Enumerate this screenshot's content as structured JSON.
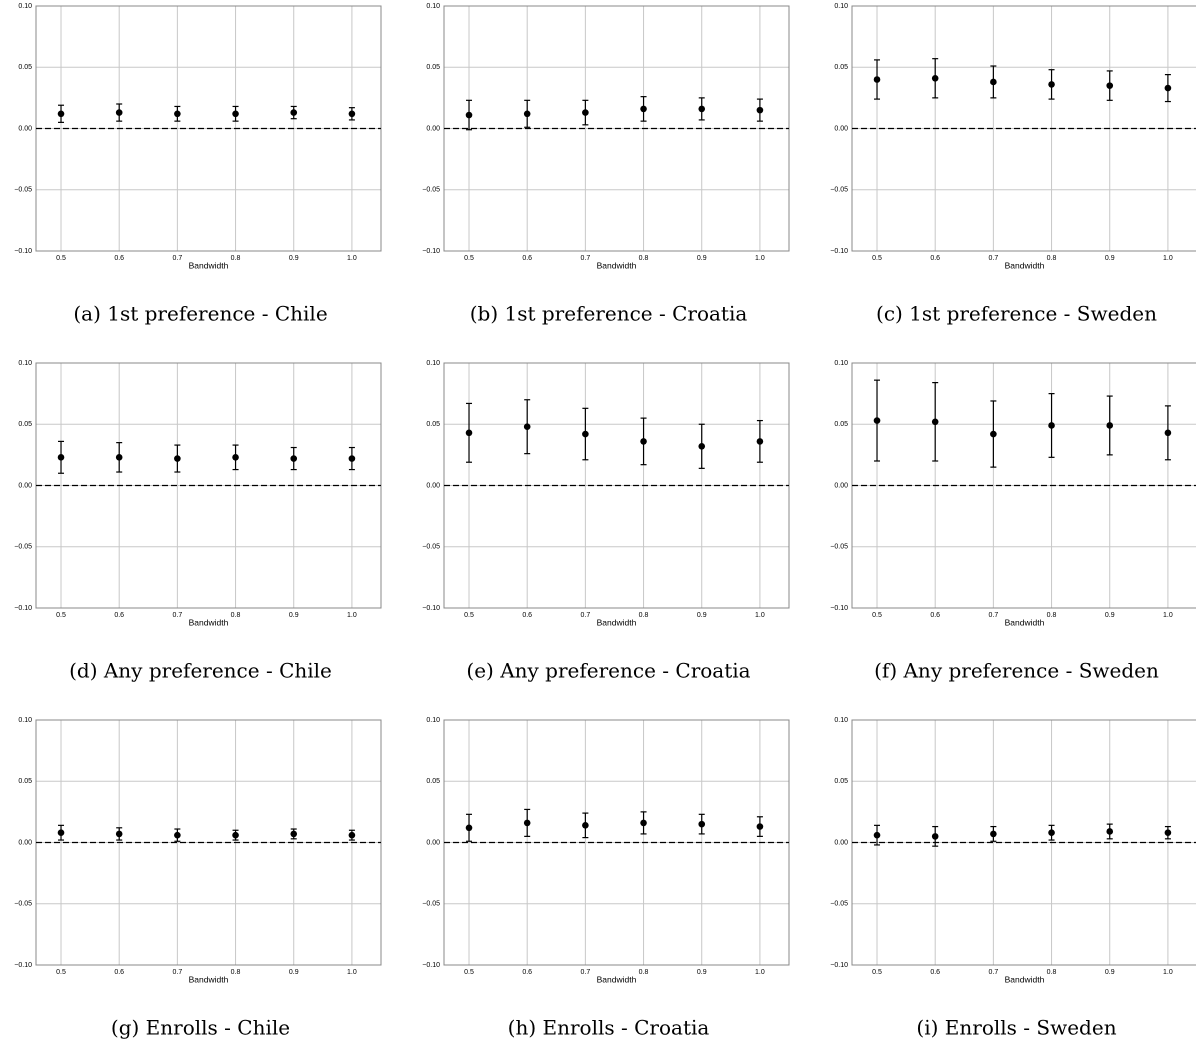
{
  "chart_data": [
    {
      "type": "errorbar",
      "caption": "(a) 1st preference - Chile",
      "x_label": "Bandwidth",
      "x": [
        0.5,
        0.6,
        0.7,
        0.8,
        0.9,
        1
      ],
      "values": [
        0.012,
        0.013,
        0.012,
        0.012,
        0.013,
        0.012
      ],
      "errors": [
        0.007,
        0.007,
        0.006,
        0.006,
        0.005,
        0.005
      ],
      "color": "#000000",
      "xlim": [
        0.457,
        1.05
      ],
      "ylim": [
        -0.1,
        0.1
      ],
      "xticks": [
        0.5,
        0.6,
        0.7,
        0.8,
        0.9,
        {
          "value": 1,
          "label": "1.0"
        }
      ],
      "yticks": [
        {
          "value": -0.1,
          "label": "−0.10"
        },
        {
          "value": -0.05,
          "label": "−0.05"
        },
        {
          "value": 0,
          "label": "0.00"
        },
        {
          "value": 0.05,
          "label": "0.05"
        },
        {
          "value": 0.1,
          "label": "0.10"
        }
      ],
      "grid": true,
      "reference_line": 0
    },
    {
      "type": "errorbar",
      "caption": "(b) 1st preference - Croatia",
      "x_label": "Bandwidth",
      "x": [
        0.5,
        0.6,
        0.7,
        0.8,
        0.9,
        1
      ],
      "values": [
        0.011,
        0.012,
        0.013,
        0.016,
        0.016,
        0.015
      ],
      "errors": [
        0.012,
        0.011,
        0.01,
        0.01,
        0.009,
        0.009
      ],
      "color": "#000000",
      "xlim": [
        0.457,
        1.05
      ],
      "ylim": [
        -0.1,
        0.1
      ],
      "xticks": [
        0.5,
        0.6,
        0.7,
        0.8,
        0.9,
        {
          "value": 1,
          "label": "1.0"
        }
      ],
      "yticks": [
        {
          "value": -0.1,
          "label": "−0.10"
        },
        {
          "value": -0.05,
          "label": "−0.05"
        },
        {
          "value": 0,
          "label": "0.00"
        },
        {
          "value": 0.05,
          "label": "0.05"
        },
        {
          "value": 0.1,
          "label": "0.10"
        }
      ],
      "grid": true,
      "reference_line": 0
    },
    {
      "type": "errorbar",
      "caption": "(c) 1st preference - Sweden",
      "x_label": "Bandwidth",
      "x": [
        0.5,
        0.6,
        0.7,
        0.8,
        0.9,
        1
      ],
      "values": [
        0.04,
        0.041,
        0.038,
        0.036,
        0.035,
        0.033
      ],
      "errors": [
        0.016,
        0.016,
        0.013,
        0.012,
        0.012,
        0.011
      ],
      "color": "#000000",
      "xlim": [
        0.457,
        1.05
      ],
      "ylim": [
        -0.1,
        0.1
      ],
      "xticks": [
        0.5,
        0.6,
        0.7,
        0.8,
        0.9,
        {
          "value": 1,
          "label": "1.0"
        }
      ],
      "yticks": [
        {
          "value": -0.1,
          "label": "−0.10"
        },
        {
          "value": -0.05,
          "label": "−0.05"
        },
        {
          "value": 0,
          "label": "0.00"
        },
        {
          "value": 0.05,
          "label": "0.05"
        },
        {
          "value": 0.1,
          "label": "0.10"
        }
      ],
      "grid": true,
      "reference_line": 0
    },
    {
      "type": "errorbar",
      "caption": "(d) Any preference - Chile",
      "x_label": "Bandwidth",
      "x": [
        0.5,
        0.6,
        0.7,
        0.8,
        0.9,
        1
      ],
      "values": [
        0.023,
        0.023,
        0.022,
        0.023,
        0.022,
        0.022
      ],
      "errors": [
        0.013,
        0.012,
        0.011,
        0.01,
        0.009,
        0.009
      ],
      "color": "#000000",
      "xlim": [
        0.457,
        1.05
      ],
      "ylim": [
        -0.1,
        0.1
      ],
      "xticks": [
        0.5,
        0.6,
        0.7,
        0.8,
        0.9,
        {
          "value": 1,
          "label": "1.0"
        }
      ],
      "yticks": [
        {
          "value": -0.1,
          "label": "−0.10"
        },
        {
          "value": -0.05,
          "label": "−0.05"
        },
        {
          "value": 0,
          "label": "0.00"
        },
        {
          "value": 0.05,
          "label": "0.05"
        },
        {
          "value": 0.1,
          "label": "0.10"
        }
      ],
      "grid": true,
      "reference_line": 0
    },
    {
      "type": "errorbar",
      "caption": "(e) Any preference - Croatia",
      "x_label": "Bandwidth",
      "x": [
        0.5,
        0.6,
        0.7,
        0.8,
        0.9,
        1
      ],
      "values": [
        0.043,
        0.048,
        0.042,
        0.036,
        0.032,
        0.036
      ],
      "errors": [
        0.024,
        0.022,
        0.021,
        0.019,
        0.018,
        0.017
      ],
      "color": "#000000",
      "xlim": [
        0.457,
        1.05
      ],
      "ylim": [
        -0.1,
        0.1
      ],
      "xticks": [
        0.5,
        0.6,
        0.7,
        0.8,
        0.9,
        {
          "value": 1,
          "label": "1.0"
        }
      ],
      "yticks": [
        {
          "value": -0.1,
          "label": "−0.10"
        },
        {
          "value": -0.05,
          "label": "−0.05"
        },
        {
          "value": 0,
          "label": "0.00"
        },
        {
          "value": 0.05,
          "label": "0.05"
        },
        {
          "value": 0.1,
          "label": "0.10"
        }
      ],
      "grid": true,
      "reference_line": 0
    },
    {
      "type": "errorbar",
      "caption": "(f) Any preference - Sweden",
      "x_label": "Bandwidth",
      "x": [
        0.5,
        0.6,
        0.7,
        0.8,
        0.9,
        1
      ],
      "values": [
        0.053,
        0.052,
        0.042,
        0.049,
        0.049,
        0.043
      ],
      "errors": [
        0.033,
        0.032,
        0.027,
        0.026,
        0.024,
        0.022
      ],
      "color": "#000000",
      "xlim": [
        0.457,
        1.05
      ],
      "ylim": [
        -0.1,
        0.1
      ],
      "xticks": [
        0.5,
        0.6,
        0.7,
        0.8,
        0.9,
        {
          "value": 1,
          "label": "1.0"
        }
      ],
      "yticks": [
        {
          "value": -0.1,
          "label": "−0.10"
        },
        {
          "value": -0.05,
          "label": "−0.05"
        },
        {
          "value": 0,
          "label": "0.00"
        },
        {
          "value": 0.05,
          "label": "0.05"
        },
        {
          "value": 0.1,
          "label": "0.10"
        }
      ],
      "grid": true,
      "reference_line": 0
    },
    {
      "type": "errorbar",
      "caption": "(g) Enrolls - Chile",
      "x_label": "Bandwidth",
      "x": [
        0.5,
        0.6,
        0.7,
        0.8,
        0.9,
        1
      ],
      "values": [
        0.008,
        0.007,
        0.006,
        0.006,
        0.007,
        0.006
      ],
      "errors": [
        0.006,
        0.005,
        0.005,
        0.004,
        0.004,
        0.004
      ],
      "color": "#000000",
      "xlim": [
        0.457,
        1.05
      ],
      "ylim": [
        -0.1,
        0.1
      ],
      "xticks": [
        0.5,
        0.6,
        0.7,
        0.8,
        0.9,
        {
          "value": 1,
          "label": "1.0"
        }
      ],
      "yticks": [
        {
          "value": -0.1,
          "label": "−0.10"
        },
        {
          "value": -0.05,
          "label": "−0.05"
        },
        {
          "value": 0,
          "label": "0.00"
        },
        {
          "value": 0.05,
          "label": "0.05"
        },
        {
          "value": 0.1,
          "label": "0.10"
        }
      ],
      "grid": true,
      "reference_line": 0
    },
    {
      "type": "errorbar",
      "caption": "(h) Enrolls - Croatia",
      "x_label": "Bandwidth",
      "x": [
        0.5,
        0.6,
        0.7,
        0.8,
        0.9,
        1
      ],
      "values": [
        0.012,
        0.016,
        0.014,
        0.016,
        0.015,
        0.013
      ],
      "errors": [
        0.011,
        0.011,
        0.01,
        0.009,
        0.008,
        0.008
      ],
      "color": "#000000",
      "xlim": [
        0.457,
        1.05
      ],
      "ylim": [
        -0.1,
        0.1
      ],
      "xticks": [
        0.5,
        0.6,
        0.7,
        0.8,
        0.9,
        {
          "value": 1,
          "label": "1.0"
        }
      ],
      "yticks": [
        {
          "value": -0.1,
          "label": "−0.10"
        },
        {
          "value": -0.05,
          "label": "−0.05"
        },
        {
          "value": 0,
          "label": "0.00"
        },
        {
          "value": 0.05,
          "label": "0.05"
        },
        {
          "value": 0.1,
          "label": "0.10"
        }
      ],
      "grid": true,
      "reference_line": 0
    },
    {
      "type": "errorbar",
      "caption": "(i) Enrolls - Sweden",
      "x_label": "Bandwidth",
      "x": [
        0.5,
        0.6,
        0.7,
        0.8,
        0.9,
        1
      ],
      "values": [
        0.006,
        0.005,
        0.007,
        0.008,
        0.009,
        0.008
      ],
      "errors": [
        0.008,
        0.008,
        0.006,
        0.006,
        0.006,
        0.005
      ],
      "color": "#000000",
      "xlim": [
        0.457,
        1.05
      ],
      "ylim": [
        -0.1,
        0.1
      ],
      "xticks": [
        0.5,
        0.6,
        0.7,
        0.8,
        0.9,
        {
          "value": 1,
          "label": "1.0"
        }
      ],
      "yticks": [
        {
          "value": -0.1,
          "label": "−0.10"
        },
        {
          "value": -0.05,
          "label": "−0.05"
        },
        {
          "value": 0,
          "label": "0.00"
        },
        {
          "value": 0.05,
          "label": "0.05"
        },
        {
          "value": 0.1,
          "label": "0.10"
        }
      ],
      "grid": true,
      "reference_line": 0
    }
  ]
}
